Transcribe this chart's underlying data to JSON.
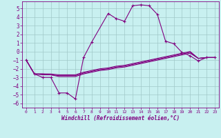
{
  "background_color": "#c8f0f0",
  "grid_color": "#a0c8c8",
  "line_color": "#800080",
  "x_data": [
    0,
    1,
    2,
    3,
    4,
    5,
    6,
    7,
    8,
    9,
    10,
    11,
    12,
    13,
    14,
    15,
    16,
    17,
    18,
    19,
    20,
    21,
    22,
    23
  ],
  "y_main": [
    -1,
    -2.6,
    -3.0,
    -3.0,
    -4.8,
    -4.8,
    -5.5,
    -0.7,
    1.1,
    null,
    4.4,
    3.8,
    3.5,
    5.3,
    5.4,
    5.3,
    4.3,
    1.2,
    0.9,
    -0.1,
    -0.5,
    -1.1,
    -0.7,
    -0.7
  ],
  "y_line1": [
    -1.0,
    -2.6,
    -2.6,
    -2.6,
    -2.7,
    -2.7,
    -2.7,
    -2.4,
    -2.2,
    -2.0,
    -1.9,
    -1.7,
    -1.6,
    -1.4,
    -1.2,
    -1.0,
    -0.8,
    -0.6,
    -0.4,
    -0.2,
    0.0,
    -0.8,
    -0.7,
    -0.7
  ],
  "y_line2": [
    -1.0,
    -2.6,
    -2.6,
    -2.7,
    -2.8,
    -2.8,
    -2.8,
    -2.5,
    -2.3,
    -2.1,
    -2.0,
    -1.8,
    -1.7,
    -1.5,
    -1.3,
    -1.1,
    -0.9,
    -0.7,
    -0.5,
    -0.3,
    -0.1,
    -0.8,
    -0.7,
    -0.7
  ],
  "y_line3": [
    -1.0,
    -2.6,
    -2.7,
    -2.7,
    -2.9,
    -2.9,
    -2.9,
    -2.6,
    -2.4,
    -2.2,
    -2.1,
    -1.9,
    -1.8,
    -1.6,
    -1.4,
    -1.2,
    -1.0,
    -0.8,
    -0.6,
    -0.4,
    -0.2,
    -0.8,
    -0.7,
    -0.7
  ],
  "xlabel": "Windchill (Refroidissement éolien,°C)",
  "ylim": [
    -6.5,
    5.8
  ],
  "xlim": [
    -0.5,
    23.5
  ],
  "yticks": [
    -6,
    -5,
    -4,
    -3,
    -2,
    -1,
    0,
    1,
    2,
    3,
    4,
    5
  ],
  "xticks": [
    0,
    1,
    2,
    3,
    4,
    5,
    6,
    7,
    8,
    9,
    10,
    11,
    12,
    13,
    14,
    15,
    16,
    17,
    18,
    19,
    20,
    21,
    22,
    23
  ],
  "ytick_fontsize": 5.5,
  "xtick_fontsize": 4.5,
  "xlabel_fontsize": 5.5
}
